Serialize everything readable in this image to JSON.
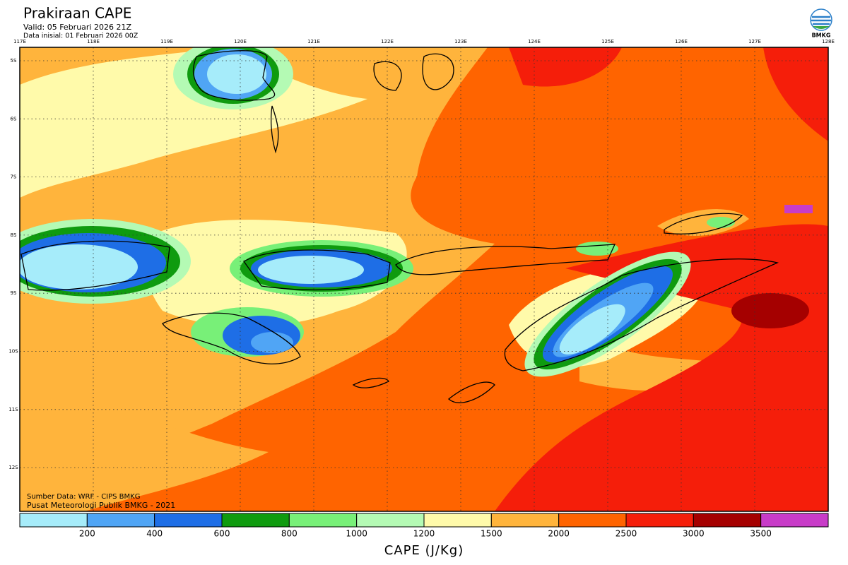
{
  "header": {
    "title": "Prakiraan CAPE",
    "valid": "Valid: 05 Februari 2026 21Z",
    "initial": "Data inisial: 01 Februari 2026 00Z"
  },
  "logo": {
    "text": "BMKG"
  },
  "map": {
    "lon_labels": [
      "117E",
      "118E",
      "119E",
      "120E",
      "121E",
      "122E",
      "123E",
      "124E",
      "125E",
      "126E",
      "127E",
      "128E"
    ],
    "lat_labels": [
      "5S",
      "6S",
      "7S",
      "8S",
      "9S",
      "10S",
      "11S",
      "12S"
    ],
    "source": "Sumber Data: WRF - CIPS BMKG",
    "credit": "Pusat Meteorologi Publik BMKG - 2021"
  },
  "colorbar": {
    "colors": [
      "#a6ecfa",
      "#50a5f5",
      "#1e6ee6",
      "#0f9b0f",
      "#78f078",
      "#b4fab4",
      "#fffaaa",
      "#ffb43c",
      "#ff6400",
      "#f51e0a",
      "#a50000",
      "#c83cc8"
    ],
    "ticks": [
      200,
      400,
      600,
      800,
      1000,
      1200,
      1500,
      2000,
      2500,
      3000,
      3500
    ],
    "label": "CAPE (J/Kg)"
  }
}
